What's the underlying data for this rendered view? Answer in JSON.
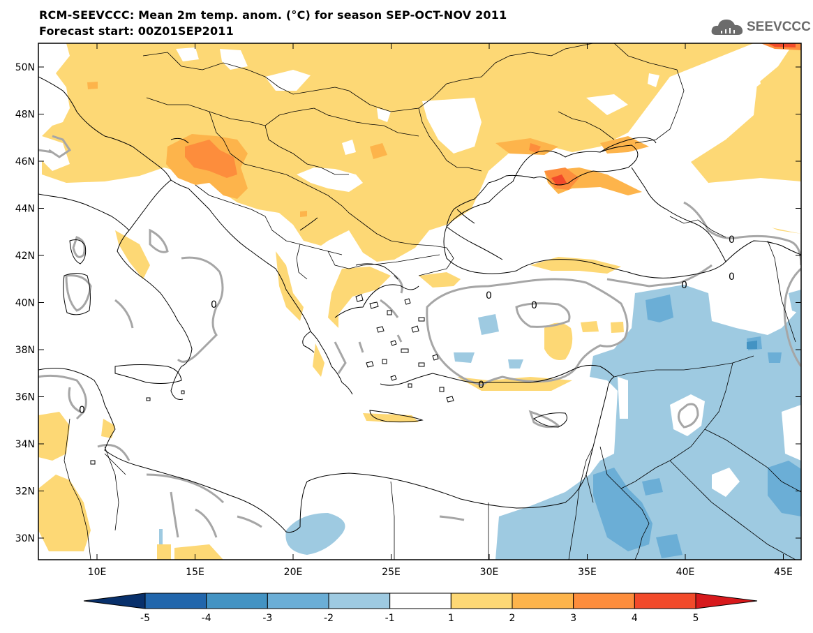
{
  "header": {
    "title": "RCM-SEEVCCC: Mean 2m temp. anom. (°C) for season SEP-OCT-NOV 2011",
    "subtitle": "Forecast start: 00Z01SEP2011"
  },
  "logo": {
    "text": "SEEVCCC",
    "icon": "cloud-icon"
  },
  "axes": {
    "lat_labels": [
      "50N",
      "48N",
      "46N",
      "44N",
      "42N",
      "40N",
      "38N",
      "36N",
      "34N",
      "32N",
      "30N"
    ],
    "lon_labels": [
      "10E",
      "15E",
      "20E",
      "25E",
      "30E",
      "35E",
      "40E",
      "45E"
    ]
  },
  "contour_labels": [
    "0",
    "0",
    "0",
    "0",
    "0",
    "0",
    "0",
    "0"
  ],
  "colorbar": {
    "labels": [
      "-5",
      "-4",
      "-3",
      "-2",
      "-1",
      "1",
      "2",
      "3",
      "4",
      "5"
    ],
    "colors": [
      "#08306b",
      "#2166ac",
      "#4393c3",
      "#6baed6",
      "#9ecae1",
      "#ffffff",
      "#fdd875",
      "#fdb44b",
      "#fd8d3c",
      "#f24a2a",
      "#d7191c"
    ]
  },
  "colors": {
    "warm1": "#fdd875",
    "warm2": "#fdb44b",
    "warm3": "#fd8d3c",
    "warm4": "#f24a2a",
    "cool1": "#9ecae1",
    "cool2": "#6baed6",
    "cool3": "#4393c3",
    "contour": "#a6a6a6",
    "coast": "#000000"
  }
}
